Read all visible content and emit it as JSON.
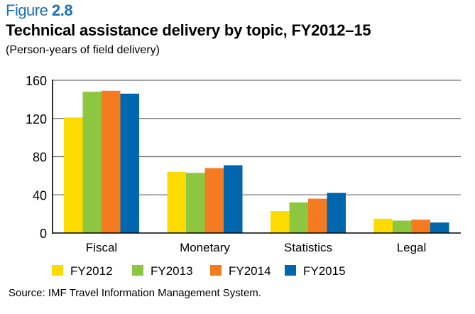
{
  "figure": {
    "label_prefix": "Figure",
    "label_number": "2.8",
    "accent_color": "#1a6fb5"
  },
  "source": "Source: IMF Travel Information Management System.",
  "chart_data": {
    "type": "bar",
    "title": "Technical assistance delivery by topic, FY2012–15",
    "subtitle": "(Person-years of field delivery)",
    "xlabel": "",
    "ylabel": "",
    "categories": [
      "Fiscal",
      "Monetary",
      "Statistics",
      "Legal"
    ],
    "series": [
      {
        "name": "FY2012",
        "color": "#fddb00",
        "values": [
          121,
          64,
          23,
          15
        ]
      },
      {
        "name": "FY2013",
        "color": "#8dc63f",
        "values": [
          148,
          63,
          32,
          13
        ]
      },
      {
        "name": "FY2014",
        "color": "#f47b20",
        "values": [
          149,
          68,
          36,
          14
        ]
      },
      {
        "name": "FY2015",
        "color": "#0066ad",
        "values": [
          146,
          71,
          42,
          11
        ]
      }
    ],
    "ylim": [
      0,
      160
    ],
    "yticks": [
      0,
      40,
      80,
      120,
      160
    ],
    "grid": true,
    "legend_position": "bottom"
  }
}
